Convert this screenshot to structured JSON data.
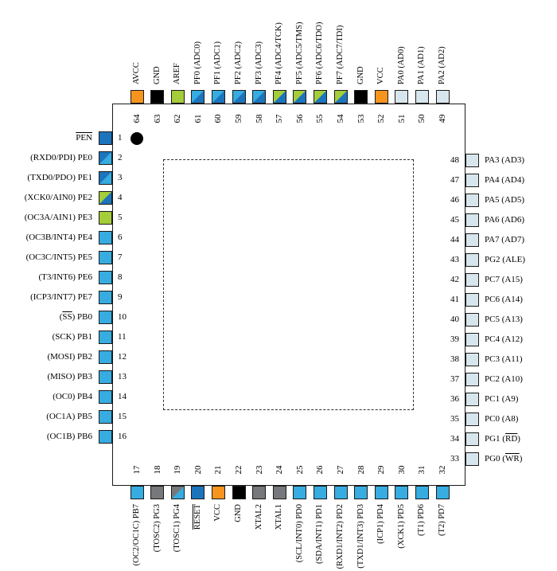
{
  "colors": {
    "pwr": "#f7941e",
    "gnd": "#000000",
    "grn": "#a4cd39",
    "cyn": "#36ace1",
    "blu": "#1c75bc",
    "pal": "#d7e6ec",
    "gry": "#77787b"
  },
  "pins": {
    "top": [
      {
        "n": 64,
        "c": "pwr",
        "label": [
          {
            "t": "AVCC"
          }
        ]
      },
      {
        "n": 63,
        "c": "gnd",
        "label": [
          {
            "t": "GND"
          }
        ]
      },
      {
        "n": 62,
        "c": "grn",
        "label": [
          {
            "t": "AREF"
          }
        ]
      },
      {
        "n": 61,
        "c": [
          "cyn",
          "blu"
        ],
        "label": [
          {
            "t": "PF0 (ADC0)"
          }
        ]
      },
      {
        "n": 60,
        "c": [
          "cyn",
          "blu"
        ],
        "label": [
          {
            "t": "PF1 (ADC1)"
          }
        ]
      },
      {
        "n": 59,
        "c": [
          "cyn",
          "blu"
        ],
        "label": [
          {
            "t": "PF2 (ADC2)"
          }
        ]
      },
      {
        "n": 58,
        "c": [
          "cyn",
          "blu"
        ],
        "label": [
          {
            "t": "PF3 (ADC3)"
          }
        ]
      },
      {
        "n": 57,
        "c": [
          "grn",
          "blu"
        ],
        "label": [
          {
            "t": "PF4 (ADC4/TCK)"
          }
        ]
      },
      {
        "n": 56,
        "c": [
          "grn",
          "blu"
        ],
        "label": [
          {
            "t": "PF5 (ADC5/TMS)"
          }
        ]
      },
      {
        "n": 55,
        "c": [
          "grn",
          "blu"
        ],
        "label": [
          {
            "t": "PF6 (ADC6/TDO)"
          }
        ]
      },
      {
        "n": 54,
        "c": [
          "grn",
          "blu"
        ],
        "label": [
          {
            "t": "PF7 (ADC7/TDI)"
          }
        ]
      },
      {
        "n": 53,
        "c": "gnd",
        "label": [
          {
            "t": "GND"
          }
        ]
      },
      {
        "n": 52,
        "c": "pwr",
        "label": [
          {
            "t": "VCC"
          }
        ]
      },
      {
        "n": 51,
        "c": "pal",
        "label": [
          {
            "t": "PA0 (AD0)"
          }
        ]
      },
      {
        "n": 50,
        "c": "pal",
        "label": [
          {
            "t": "PA1 (AD1)"
          }
        ]
      },
      {
        "n": 49,
        "c": "pal",
        "label": [
          {
            "t": "PA2 (AD2)"
          }
        ]
      }
    ],
    "left": [
      {
        "n": 1,
        "c": "blu",
        "label": [
          {
            "t": "PEN",
            "o": true
          }
        ]
      },
      {
        "n": 2,
        "c": [
          "blu",
          "cyn"
        ],
        "label": [
          {
            "t": "(RXD0/PDI) PE0"
          }
        ]
      },
      {
        "n": 3,
        "c": [
          "blu",
          "cyn"
        ],
        "label": [
          {
            "t": "(TXD0/PDO) PE1"
          }
        ]
      },
      {
        "n": 4,
        "c": [
          "grn",
          "blu"
        ],
        "label": [
          {
            "t": "(XCK0/AIN0) PE2"
          }
        ]
      },
      {
        "n": 5,
        "c": "grn",
        "label": [
          {
            "t": "(OC3A/AIN1) PE3"
          }
        ]
      },
      {
        "n": 6,
        "c": "cyn",
        "label": [
          {
            "t": "(OC3B/INT4) PE4"
          }
        ]
      },
      {
        "n": 7,
        "c": "cyn",
        "label": [
          {
            "t": "(OC3C/INT5) PE5"
          }
        ]
      },
      {
        "n": 8,
        "c": "cyn",
        "label": [
          {
            "t": "(T3/INT6) PE6"
          }
        ]
      },
      {
        "n": 9,
        "c": "cyn",
        "label": [
          {
            "t": "(ICP3/INT7) PE7"
          }
        ]
      },
      {
        "n": 10,
        "c": "cyn",
        "label": [
          {
            "t": "("
          },
          {
            "t": "SS",
            "o": true
          },
          {
            "t": ") PB0"
          }
        ]
      },
      {
        "n": 11,
        "c": "cyn",
        "label": [
          {
            "t": "(SCK) PB1"
          }
        ]
      },
      {
        "n": 12,
        "c": "cyn",
        "label": [
          {
            "t": "(MOSI) PB2"
          }
        ]
      },
      {
        "n": 13,
        "c": "cyn",
        "label": [
          {
            "t": "(MISO) PB3"
          }
        ]
      },
      {
        "n": 14,
        "c": "cyn",
        "label": [
          {
            "t": "(OC0) PB4"
          }
        ]
      },
      {
        "n": 15,
        "c": "cyn",
        "label": [
          {
            "t": "(OC1A) PB5"
          }
        ]
      },
      {
        "n": 16,
        "c": "cyn",
        "label": [
          {
            "t": "(OC1B) PB6"
          }
        ]
      }
    ],
    "bottom": [
      {
        "n": 17,
        "c": "cyn",
        "label": [
          {
            "t": "(OC2/OC1C) PB7"
          }
        ]
      },
      {
        "n": 18,
        "c": "gry",
        "label": [
          {
            "t": "(TOSC2) PG3"
          }
        ]
      },
      {
        "n": 19,
        "c": [
          "gry",
          "cyn"
        ],
        "label": [
          {
            "t": "(TOSC1) PG4"
          }
        ]
      },
      {
        "n": 20,
        "c": "blu",
        "label": [
          {
            "t": "RESET",
            "o": true
          }
        ]
      },
      {
        "n": 21,
        "c": "pwr",
        "label": [
          {
            "t": "VCC"
          }
        ]
      },
      {
        "n": 22,
        "c": "gnd",
        "label": [
          {
            "t": "GND"
          }
        ]
      },
      {
        "n": 23,
        "c": "gry",
        "label": [
          {
            "t": "XTAL2"
          }
        ]
      },
      {
        "n": 24,
        "c": "gry",
        "label": [
          {
            "t": "XTAL1"
          }
        ]
      },
      {
        "n": 25,
        "c": "cyn",
        "label": [
          {
            "t": "(SCL/INT0) PD0"
          }
        ]
      },
      {
        "n": 26,
        "c": "cyn",
        "label": [
          {
            "t": "(SDA/INT1) PD1"
          }
        ]
      },
      {
        "n": 27,
        "c": "cyn",
        "label": [
          {
            "t": "(RXD1/INT2) PD2"
          }
        ]
      },
      {
        "n": 28,
        "c": "cyn",
        "label": [
          {
            "t": "(TXD1/INT3) PD3"
          }
        ]
      },
      {
        "n": 29,
        "c": "cyn",
        "label": [
          {
            "t": "(ICP1) PD4"
          }
        ]
      },
      {
        "n": 30,
        "c": "cyn",
        "label": [
          {
            "t": "(XCK1) PD5"
          }
        ]
      },
      {
        "n": 31,
        "c": "cyn",
        "label": [
          {
            "t": "(T1) PD6"
          }
        ]
      },
      {
        "n": 32,
        "c": "cyn",
        "label": [
          {
            "t": "(T2) PD7"
          }
        ]
      }
    ],
    "right": [
      {
        "n": 48,
        "c": "pal",
        "label": [
          {
            "t": "PA3 (AD3)"
          }
        ]
      },
      {
        "n": 47,
        "c": "pal",
        "label": [
          {
            "t": "PA4 (AD4)"
          }
        ]
      },
      {
        "n": 46,
        "c": "pal",
        "label": [
          {
            "t": "PA5 (AD5)"
          }
        ]
      },
      {
        "n": 45,
        "c": "pal",
        "label": [
          {
            "t": "PA6 (AD6)"
          }
        ]
      },
      {
        "n": 44,
        "c": "pal",
        "label": [
          {
            "t": "PA7 (AD7)"
          }
        ]
      },
      {
        "n": 43,
        "c": "pal",
        "label": [
          {
            "t": "PG2 (ALE)"
          }
        ]
      },
      {
        "n": 42,
        "c": "pal",
        "label": [
          {
            "t": "PC7 (A15)"
          }
        ]
      },
      {
        "n": 41,
        "c": "pal",
        "label": [
          {
            "t": "PC6 (A14)"
          }
        ]
      },
      {
        "n": 40,
        "c": "pal",
        "label": [
          {
            "t": "PC5 (A13)"
          }
        ]
      },
      {
        "n": 39,
        "c": "pal",
        "label": [
          {
            "t": "PC4 (A12)"
          }
        ]
      },
      {
        "n": 38,
        "c": "pal",
        "label": [
          {
            "t": "PC3 (A11)"
          }
        ]
      },
      {
        "n": 37,
        "c": "pal",
        "label": [
          {
            "t": "PC2 (A10)"
          }
        ]
      },
      {
        "n": 36,
        "c": "pal",
        "label": [
          {
            "t": "PC1 (A9)"
          }
        ]
      },
      {
        "n": 35,
        "c": "pal",
        "label": [
          {
            "t": "PC0 (A8)"
          }
        ]
      },
      {
        "n": 34,
        "c": "pal",
        "label": [
          {
            "t": "PG1 ("
          },
          {
            "t": "RD",
            "o": true
          },
          {
            "t": ")"
          }
        ]
      },
      {
        "n": 33,
        "c": "pal",
        "label": [
          {
            "t": "PG0 ("
          },
          {
            "t": "WR",
            "o": true
          },
          {
            "t": ")"
          }
        ]
      }
    ]
  }
}
